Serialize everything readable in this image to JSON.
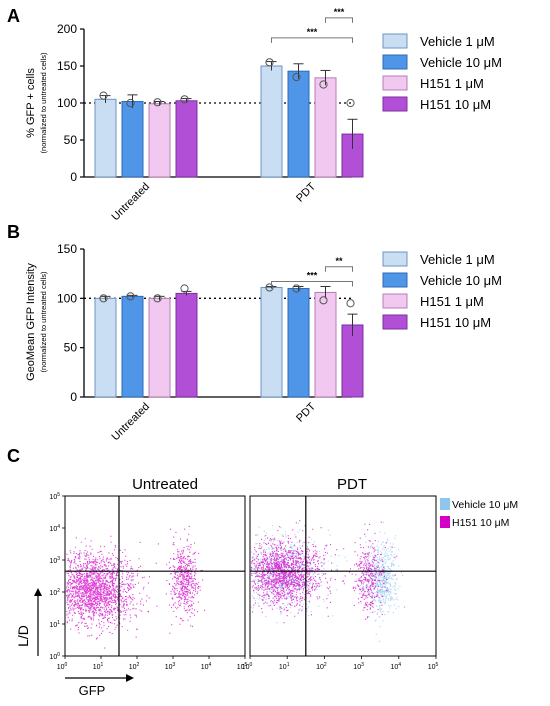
{
  "panels": {
    "a": {
      "letter": "A"
    },
    "b": {
      "letter": "B"
    },
    "c": {
      "letter": "C"
    }
  },
  "legend": [
    {
      "label": "Vehicle 1 μM",
      "fill": "#c9ddf3",
      "stroke": "#6f93c0"
    },
    {
      "label": "Vehicle 10 μM",
      "fill": "#4f95e8",
      "stroke": "#2d6bb8"
    },
    {
      "label": "H151 1 μM",
      "fill": "#f1c8f0",
      "stroke": "#b77cb6"
    },
    {
      "label": "H151 10 μM",
      "fill": "#b14fd6",
      "stroke": "#7d2fa0"
    }
  ],
  "chart_data": [
    {
      "type": "bar",
      "ylabel": "% GFP + cells",
      "ylabel_sub": "(normalized to untreated cells)",
      "ylim": [
        0,
        200
      ],
      "yticks": [
        0,
        50,
        100,
        150,
        200
      ],
      "reference_line": 100,
      "categories": [
        "Untreated",
        "PDT"
      ],
      "series": [
        {
          "name": "Vehicle 1 μM",
          "values": [
            105,
            150
          ],
          "errors": [
            5,
            6
          ],
          "points": [
            [
              110
            ],
            [
              155
            ]
          ]
        },
        {
          "name": "Vehicle 10 μM",
          "values": [
            102,
            143
          ],
          "errors": [
            9,
            10
          ],
          "points": [
            [
              100
            ],
            [
              135
            ]
          ]
        },
        {
          "name": "H151 1 μM",
          "values": [
            99,
            134
          ],
          "errors": [
            3,
            10
          ],
          "points": [
            [
              101
            ],
            [
              125
            ]
          ]
        },
        {
          "name": "H151 10 μM",
          "values": [
            103,
            58
          ],
          "errors": [
            3,
            20
          ],
          "points": [
            [
              105
            ],
            [
              100
            ]
          ]
        }
      ],
      "significance": [
        {
          "label": "***",
          "from_series": 2,
          "to_series": 3,
          "y": 215
        },
        {
          "label": "***",
          "from_series": 0,
          "to_series": 3,
          "y": 188
        }
      ]
    },
    {
      "type": "bar",
      "ylabel": "GeoMean GFP Intensity",
      "ylabel_sub": "(normalized to untreated cells)",
      "ylim": [
        0,
        150
      ],
      "yticks": [
        0,
        50,
        100,
        150
      ],
      "reference_line": 100,
      "categories": [
        "Untreated",
        "PDT"
      ],
      "series": [
        {
          "name": "Vehicle 1 μM",
          "values": [
            100,
            111
          ],
          "errors": [
            2,
            1
          ],
          "points": [
            [
              100
            ],
            [
              111
            ]
          ]
        },
        {
          "name": "Vehicle 10 μM",
          "values": [
            102,
            110
          ],
          "errors": [
            1,
            2
          ],
          "points": [
            [
              102
            ],
            [
              110
            ]
          ]
        },
        {
          "name": "H151 1 μM",
          "values": [
            100,
            106
          ],
          "errors": [
            2,
            6
          ],
          "points": [
            [
              100
            ],
            [
              98
            ]
          ]
        },
        {
          "name": "H151 10 μM",
          "values": [
            105,
            73
          ],
          "errors": [
            2,
            11
          ],
          "points": [
            [
              110
            ],
            [
              95
            ]
          ]
        }
      ],
      "significance": [
        {
          "label": "**",
          "from_series": 2,
          "to_series": 3,
          "y": 132
        },
        {
          "label": "***",
          "from_series": 0,
          "to_series": 3,
          "y": 117
        }
      ]
    },
    {
      "type": "scatter",
      "panels": [
        "Untreated",
        "PDT"
      ],
      "xlabel": "GFP",
      "ylabel": "L/D",
      "axis_scale": "log",
      "tick_exponents": [
        0,
        1,
        2,
        3,
        4,
        5
      ],
      "gate": {
        "x_log": 1.5,
        "y_log": 2.65
      },
      "legend": [
        {
          "name": "Vehicle 10 μM",
          "color": "#8ec6ef"
        },
        {
          "name": "H151 10 μM",
          "color": "#d400c8"
        }
      ],
      "clusters": {
        "Untreated": [
          {
            "series": 1,
            "x": 0.8,
            "y": 2.1,
            "sx": 0.55,
            "sy": 0.55,
            "n": 1900
          },
          {
            "series": 1,
            "x": 3.3,
            "y": 2.4,
            "sx": 0.2,
            "sy": 0.55,
            "n": 500
          }
        ],
        "PDT": [
          {
            "series": 0,
            "x": 0.9,
            "y": 2.6,
            "sx": 0.55,
            "sy": 0.55,
            "n": 700
          },
          {
            "series": 0,
            "x": 3.5,
            "y": 2.4,
            "sx": 0.22,
            "sy": 0.55,
            "n": 550
          },
          {
            "series": 1,
            "x": 0.9,
            "y": 2.6,
            "sx": 0.5,
            "sy": 0.5,
            "n": 1500
          },
          {
            "series": 1,
            "x": 3.2,
            "y": 2.5,
            "sx": 0.22,
            "sy": 0.55,
            "n": 350
          }
        ]
      }
    }
  ]
}
